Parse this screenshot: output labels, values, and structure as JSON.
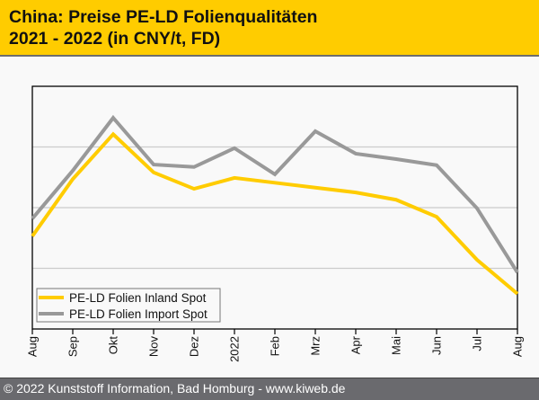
{
  "header": {
    "title": "China: Preise PE-LD Folienqualitäten\n2021 - 2022 (in CNY/t, FD)"
  },
  "footer": {
    "copyright": "© 2022 Kunststoff Information, Bad Homburg - www.kiweb.de"
  },
  "colors": {
    "header_bg": "#ffcc00",
    "inland": "#ffcc00",
    "import": "#999999",
    "gridline": "#cccccc",
    "footer_bg": "#6a6a6e"
  },
  "chart_data": {
    "type": "line",
    "title": "China: Preise PE-LD Folienqualitäten 2021 - 2022 (in CNY/t, FD)",
    "xlabel": "",
    "ylabel": "",
    "y_axis_note": "No y-axis tick labels shown; values are a relative index where the 3 horizontal gridlines sit at 1, 2, 3 and the plot spans 0-4",
    "ylim": [
      0,
      4
    ],
    "gridlines_y": [
      1,
      2,
      3
    ],
    "grid": true,
    "legend_position": "bottom-left",
    "categories": [
      "Aug",
      "Sep",
      "Okt",
      "Nov",
      "Dez",
      "2022",
      "Feb",
      "Mrz",
      "Apr",
      "Mai",
      "Jun",
      "Jul",
      "Aug"
    ],
    "series": [
      {
        "name": "PE-LD Folien Inland Spot",
        "color": "#ffcc00",
        "values": [
          1.53,
          2.47,
          3.21,
          2.58,
          2.31,
          2.49,
          2.41,
          2.33,
          2.25,
          2.13,
          1.85,
          1.14,
          0.58
        ]
      },
      {
        "name": "PE-LD Folien Import Spot",
        "color": "#999999",
        "values": [
          1.82,
          2.61,
          3.48,
          2.71,
          2.67,
          2.98,
          2.55,
          3.26,
          2.89,
          2.8,
          2.7,
          1.99,
          0.93
        ]
      }
    ]
  }
}
